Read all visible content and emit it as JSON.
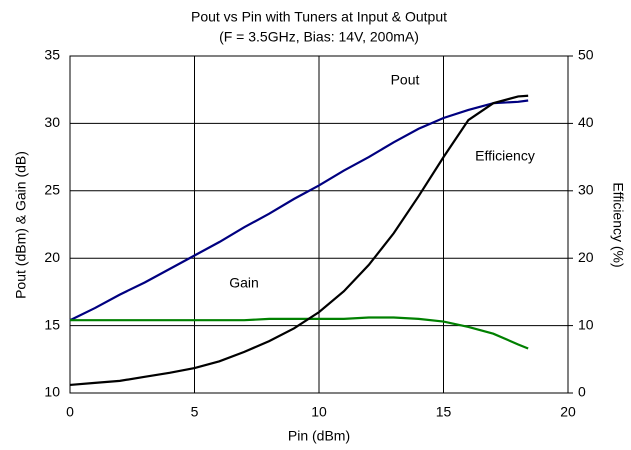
{
  "chart_data": {
    "type": "line",
    "title": "Pout vs Pin with Tuners at Input & Output",
    "subtitle": "(F = 3.5GHz, Bias: 14V, 200mA)",
    "x_label": "Pin (dBm)",
    "y_label": "Pout (dBm) & Gain (dB)",
    "y2_label": "Efficiency (%)",
    "annotations": [
      "Pout",
      "Efficiency",
      "Gain"
    ],
    "x": [
      0,
      1,
      2,
      3,
      4,
      5,
      6,
      7,
      8,
      9,
      10,
      11,
      12,
      13,
      14,
      15,
      16,
      17,
      18,
      18.4
    ],
    "series": [
      {
        "name": "Pout",
        "color": "#000080",
        "values": [
          15.4,
          16.3,
          17.3,
          18.2,
          19.2,
          20.2,
          21.2,
          22.3,
          23.3,
          24.4,
          25.4,
          26.5,
          27.5,
          28.6,
          29.6,
          30.4,
          31.0,
          31.5,
          31.6,
          31.7
        ]
      },
      {
        "name": "Gain",
        "color": "#008000",
        "values": [
          15.4,
          15.4,
          15.4,
          15.4,
          15.4,
          15.4,
          15.4,
          15.4,
          15.5,
          15.5,
          15.5,
          15.5,
          15.6,
          15.6,
          15.5,
          15.3,
          14.9,
          14.4,
          13.6,
          13.3
        ]
      },
      {
        "name": "Efficiency",
        "color": "#000000",
        "axis": "y2",
        "values": [
          1.2,
          1.5,
          1.8,
          2.4,
          3.0,
          3.7,
          4.7,
          6.1,
          7.7,
          9.6,
          12,
          15.1,
          19,
          23.7,
          29.2,
          35,
          40.5,
          43,
          44,
          44.1
        ]
      }
    ],
    "xlim": [
      0,
      20
    ],
    "xticks": [
      0,
      5,
      10,
      15,
      20
    ],
    "ylim": [
      10,
      35
    ],
    "yticks": [
      10,
      15,
      20,
      25,
      30,
      35
    ],
    "y2lim": [
      0,
      50
    ],
    "y2ticks": [
      0,
      10,
      20,
      30,
      40,
      50
    ],
    "grid": true
  }
}
